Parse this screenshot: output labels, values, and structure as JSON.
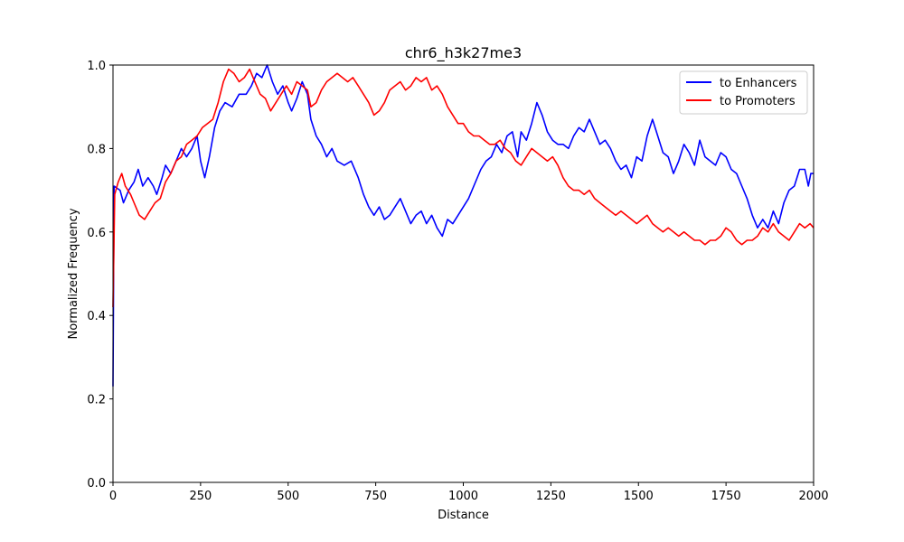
{
  "chart_data": {
    "type": "line",
    "title": "chr6_h3k27me3",
    "xlabel": "Distance",
    "ylabel": "Normalized Frequency",
    "xlim": [
      0,
      2000
    ],
    "ylim": [
      0,
      1.0
    ],
    "x_ticks": [
      "0",
      "250",
      "500",
      "750",
      "1000",
      "1250",
      "1500",
      "1750",
      "2000"
    ],
    "y_ticks": [
      "0.0",
      "0.2",
      "0.4",
      "0.6",
      "0.8",
      "1.0"
    ],
    "grid": false,
    "legend_position": "top-right",
    "series": [
      {
        "name": "to Enhancers",
        "color": "#0000ff",
        "points": [
          [
            0,
            0.23
          ],
          [
            3,
            0.71
          ],
          [
            20,
            0.7
          ],
          [
            30,
            0.67
          ],
          [
            45,
            0.7
          ],
          [
            60,
            0.72
          ],
          [
            72,
            0.75
          ],
          [
            85,
            0.71
          ],
          [
            100,
            0.73
          ],
          [
            115,
            0.71
          ],
          [
            125,
            0.69
          ],
          [
            140,
            0.73
          ],
          [
            150,
            0.76
          ],
          [
            165,
            0.74
          ],
          [
            180,
            0.77
          ],
          [
            195,
            0.8
          ],
          [
            210,
            0.78
          ],
          [
            225,
            0.8
          ],
          [
            240,
            0.83
          ],
          [
            250,
            0.77
          ],
          [
            262,
            0.73
          ],
          [
            275,
            0.78
          ],
          [
            290,
            0.85
          ],
          [
            305,
            0.89
          ],
          [
            320,
            0.91
          ],
          [
            340,
            0.9
          ],
          [
            360,
            0.93
          ],
          [
            380,
            0.93
          ],
          [
            395,
            0.95
          ],
          [
            410,
            0.98
          ],
          [
            425,
            0.97
          ],
          [
            440,
            1.0
          ],
          [
            455,
            0.96
          ],
          [
            470,
            0.93
          ],
          [
            485,
            0.95
          ],
          [
            500,
            0.91
          ],
          [
            510,
            0.89
          ],
          [
            525,
            0.92
          ],
          [
            540,
            0.96
          ],
          [
            555,
            0.93
          ],
          [
            565,
            0.87
          ],
          [
            580,
            0.83
          ],
          [
            595,
            0.81
          ],
          [
            610,
            0.78
          ],
          [
            625,
            0.8
          ],
          [
            640,
            0.77
          ],
          [
            660,
            0.76
          ],
          [
            680,
            0.77
          ],
          [
            700,
            0.73
          ],
          [
            715,
            0.69
          ],
          [
            730,
            0.66
          ],
          [
            745,
            0.64
          ],
          [
            760,
            0.66
          ],
          [
            775,
            0.63
          ],
          [
            790,
            0.64
          ],
          [
            805,
            0.66
          ],
          [
            820,
            0.68
          ],
          [
            835,
            0.65
          ],
          [
            850,
            0.62
          ],
          [
            865,
            0.64
          ],
          [
            880,
            0.65
          ],
          [
            895,
            0.62
          ],
          [
            910,
            0.64
          ],
          [
            925,
            0.61
          ],
          [
            940,
            0.59
          ],
          [
            955,
            0.63
          ],
          [
            970,
            0.62
          ],
          [
            985,
            0.64
          ],
          [
            1000,
            0.66
          ],
          [
            1015,
            0.68
          ],
          [
            1030,
            0.71
          ],
          [
            1050,
            0.75
          ],
          [
            1065,
            0.77
          ],
          [
            1080,
            0.78
          ],
          [
            1095,
            0.81
          ],
          [
            1110,
            0.79
          ],
          [
            1125,
            0.83
          ],
          [
            1140,
            0.84
          ],
          [
            1155,
            0.78
          ],
          [
            1165,
            0.84
          ],
          [
            1180,
            0.82
          ],
          [
            1195,
            0.86
          ],
          [
            1210,
            0.91
          ],
          [
            1225,
            0.88
          ],
          [
            1240,
            0.84
          ],
          [
            1255,
            0.82
          ],
          [
            1270,
            0.81
          ],
          [
            1285,
            0.81
          ],
          [
            1300,
            0.8
          ],
          [
            1315,
            0.83
          ],
          [
            1330,
            0.85
          ],
          [
            1345,
            0.84
          ],
          [
            1360,
            0.87
          ],
          [
            1375,
            0.84
          ],
          [
            1390,
            0.81
          ],
          [
            1405,
            0.82
          ],
          [
            1420,
            0.8
          ],
          [
            1435,
            0.77
          ],
          [
            1450,
            0.75
          ],
          [
            1465,
            0.76
          ],
          [
            1480,
            0.73
          ],
          [
            1495,
            0.78
          ],
          [
            1510,
            0.77
          ],
          [
            1525,
            0.83
          ],
          [
            1540,
            0.87
          ],
          [
            1555,
            0.83
          ],
          [
            1570,
            0.79
          ],
          [
            1585,
            0.78
          ],
          [
            1600,
            0.74
          ],
          [
            1615,
            0.77
          ],
          [
            1630,
            0.81
          ],
          [
            1645,
            0.79
          ],
          [
            1660,
            0.76
          ],
          [
            1675,
            0.82
          ],
          [
            1690,
            0.78
          ],
          [
            1705,
            0.77
          ],
          [
            1720,
            0.76
          ],
          [
            1735,
            0.79
          ],
          [
            1750,
            0.78
          ],
          [
            1765,
            0.75
          ],
          [
            1780,
            0.74
          ],
          [
            1795,
            0.71
          ],
          [
            1810,
            0.68
          ],
          [
            1825,
            0.64
          ],
          [
            1840,
            0.61
          ],
          [
            1855,
            0.63
          ],
          [
            1870,
            0.61
          ],
          [
            1885,
            0.65
          ],
          [
            1900,
            0.62
          ],
          [
            1915,
            0.67
          ],
          [
            1930,
            0.7
          ],
          [
            1945,
            0.71
          ],
          [
            1960,
            0.75
          ],
          [
            1975,
            0.75
          ],
          [
            1985,
            0.71
          ],
          [
            1992,
            0.74
          ],
          [
            2000,
            0.74
          ]
        ]
      },
      {
        "name": "to Promoters",
        "color": "#ff0000",
        "points": [
          [
            0,
            0.42
          ],
          [
            5,
            0.69
          ],
          [
            15,
            0.72
          ],
          [
            25,
            0.74
          ],
          [
            35,
            0.71
          ],
          [
            50,
            0.69
          ],
          [
            60,
            0.67
          ],
          [
            75,
            0.64
          ],
          [
            90,
            0.63
          ],
          [
            105,
            0.65
          ],
          [
            120,
            0.67
          ],
          [
            135,
            0.68
          ],
          [
            150,
            0.72
          ],
          [
            165,
            0.74
          ],
          [
            180,
            0.77
          ],
          [
            195,
            0.78
          ],
          [
            210,
            0.81
          ],
          [
            225,
            0.82
          ],
          [
            240,
            0.83
          ],
          [
            255,
            0.85
          ],
          [
            270,
            0.86
          ],
          [
            285,
            0.87
          ],
          [
            300,
            0.91
          ],
          [
            315,
            0.96
          ],
          [
            330,
            0.99
          ],
          [
            345,
            0.98
          ],
          [
            360,
            0.96
          ],
          [
            375,
            0.97
          ],
          [
            390,
            0.99
          ],
          [
            405,
            0.96
          ],
          [
            420,
            0.93
          ],
          [
            435,
            0.92
          ],
          [
            450,
            0.89
          ],
          [
            465,
            0.91
          ],
          [
            480,
            0.93
          ],
          [
            495,
            0.95
          ],
          [
            510,
            0.93
          ],
          [
            525,
            0.96
          ],
          [
            540,
            0.95
          ],
          [
            555,
            0.94
          ],
          [
            565,
            0.9
          ],
          [
            580,
            0.91
          ],
          [
            595,
            0.94
          ],
          [
            610,
            0.96
          ],
          [
            625,
            0.97
          ],
          [
            640,
            0.98
          ],
          [
            655,
            0.97
          ],
          [
            670,
            0.96
          ],
          [
            685,
            0.97
          ],
          [
            700,
            0.95
          ],
          [
            715,
            0.93
          ],
          [
            730,
            0.91
          ],
          [
            745,
            0.88
          ],
          [
            760,
            0.89
          ],
          [
            775,
            0.91
          ],
          [
            790,
            0.94
          ],
          [
            805,
            0.95
          ],
          [
            820,
            0.96
          ],
          [
            835,
            0.94
          ],
          [
            850,
            0.95
          ],
          [
            865,
            0.97
          ],
          [
            880,
            0.96
          ],
          [
            895,
            0.97
          ],
          [
            910,
            0.94
          ],
          [
            925,
            0.95
          ],
          [
            940,
            0.93
          ],
          [
            955,
            0.9
          ],
          [
            970,
            0.88
          ],
          [
            985,
            0.86
          ],
          [
            1000,
            0.86
          ],
          [
            1015,
            0.84
          ],
          [
            1030,
            0.83
          ],
          [
            1045,
            0.83
          ],
          [
            1060,
            0.82
          ],
          [
            1075,
            0.81
          ],
          [
            1090,
            0.81
          ],
          [
            1105,
            0.82
          ],
          [
            1120,
            0.8
          ],
          [
            1135,
            0.79
          ],
          [
            1150,
            0.77
          ],
          [
            1165,
            0.76
          ],
          [
            1180,
            0.78
          ],
          [
            1195,
            0.8
          ],
          [
            1210,
            0.79
          ],
          [
            1225,
            0.78
          ],
          [
            1240,
            0.77
          ],
          [
            1255,
            0.78
          ],
          [
            1270,
            0.76
          ],
          [
            1285,
            0.73
          ],
          [
            1300,
            0.71
          ],
          [
            1315,
            0.7
          ],
          [
            1330,
            0.7
          ],
          [
            1345,
            0.69
          ],
          [
            1360,
            0.7
          ],
          [
            1375,
            0.68
          ],
          [
            1390,
            0.67
          ],
          [
            1405,
            0.66
          ],
          [
            1420,
            0.65
          ],
          [
            1435,
            0.64
          ],
          [
            1450,
            0.65
          ],
          [
            1465,
            0.64
          ],
          [
            1480,
            0.63
          ],
          [
            1495,
            0.62
          ],
          [
            1510,
            0.63
          ],
          [
            1525,
            0.64
          ],
          [
            1540,
            0.62
          ],
          [
            1555,
            0.61
          ],
          [
            1570,
            0.6
          ],
          [
            1585,
            0.61
          ],
          [
            1600,
            0.6
          ],
          [
            1615,
            0.59
          ],
          [
            1630,
            0.6
          ],
          [
            1645,
            0.59
          ],
          [
            1660,
            0.58
          ],
          [
            1675,
            0.58
          ],
          [
            1690,
            0.57
          ],
          [
            1705,
            0.58
          ],
          [
            1720,
            0.58
          ],
          [
            1735,
            0.59
          ],
          [
            1750,
            0.61
          ],
          [
            1765,
            0.6
          ],
          [
            1780,
            0.58
          ],
          [
            1795,
            0.57
          ],
          [
            1810,
            0.58
          ],
          [
            1825,
            0.58
          ],
          [
            1840,
            0.59
          ],
          [
            1855,
            0.61
          ],
          [
            1870,
            0.6
          ],
          [
            1885,
            0.62
          ],
          [
            1900,
            0.6
          ],
          [
            1915,
            0.59
          ],
          [
            1930,
            0.58
          ],
          [
            1945,
            0.6
          ],
          [
            1960,
            0.62
          ],
          [
            1975,
            0.61
          ],
          [
            1990,
            0.62
          ],
          [
            2000,
            0.61
          ]
        ]
      }
    ]
  }
}
